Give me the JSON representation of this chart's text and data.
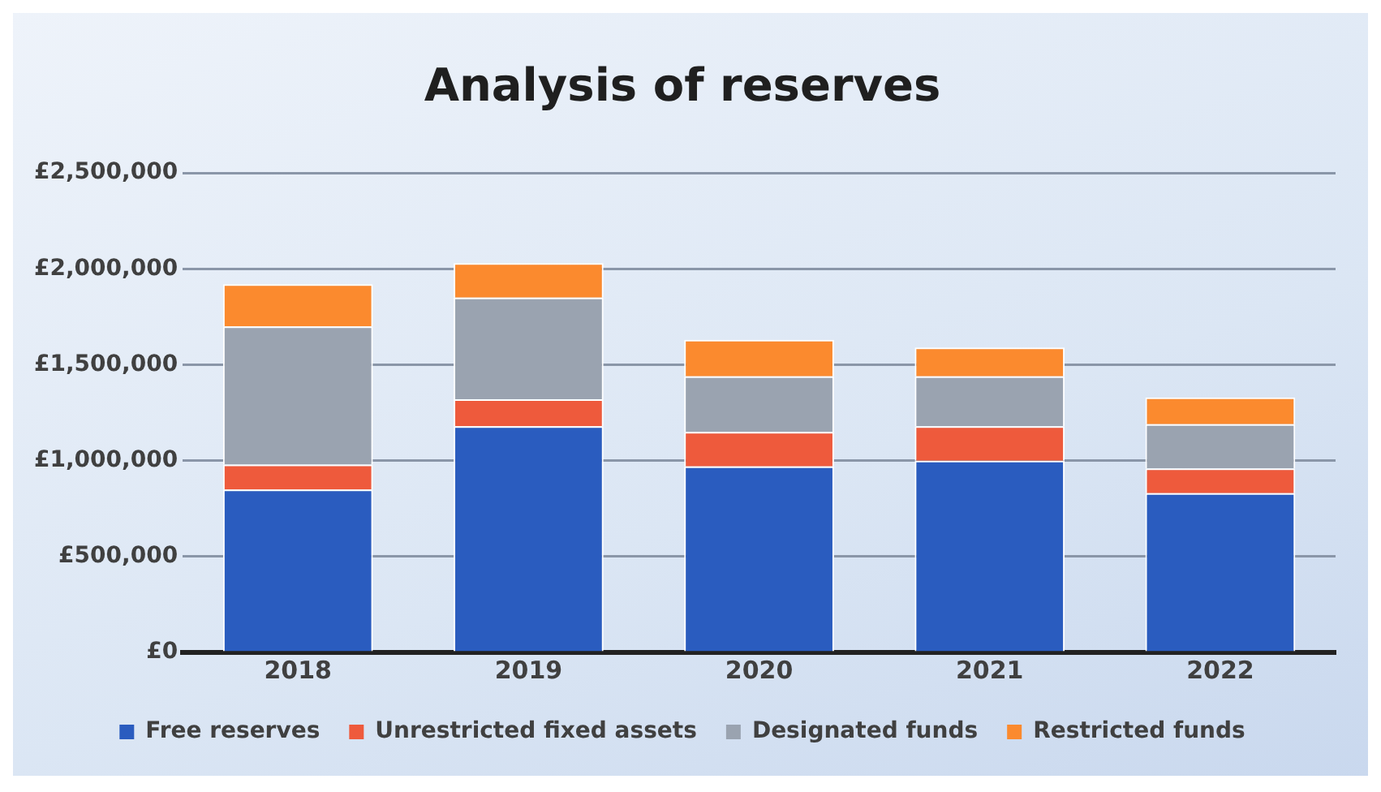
{
  "chart_data": {
    "type": "bar",
    "title": "Analysis of reserves",
    "stacked": true,
    "grid": "y",
    "legend": "bottom",
    "categories": [
      "2018",
      "2019",
      "2020",
      "2021",
      "2022"
    ],
    "series": [
      {
        "name": "Free reserves",
        "color": "#2a5cbf",
        "values": [
          850000,
          1180000,
          970000,
          1000000,
          830000
        ]
      },
      {
        "name": "Unrestricted fixed assets",
        "color": "#ee5a3c",
        "values": [
          130000,
          140000,
          180000,
          180000,
          130000
        ]
      },
      {
        "name": "Designated funds",
        "color": "#9aa3b0",
        "values": [
          720000,
          530000,
          290000,
          260000,
          230000
        ]
      },
      {
        "name": "Restricted funds",
        "color": "#fb8a2e",
        "values": [
          220000,
          180000,
          190000,
          150000,
          140000
        ]
      }
    ],
    "ylim": [
      0,
      2500000
    ],
    "yticks": [
      {
        "value": 0,
        "label": "£0"
      },
      {
        "value": 500000,
        "label": "£500,000"
      },
      {
        "value": 1000000,
        "label": "£1,000,000"
      },
      {
        "value": 1500000,
        "label": "£1,500,000"
      },
      {
        "value": 2000000,
        "label": "£2,000,000"
      },
      {
        "value": 2500000,
        "label": "£2,500,000"
      }
    ]
  }
}
